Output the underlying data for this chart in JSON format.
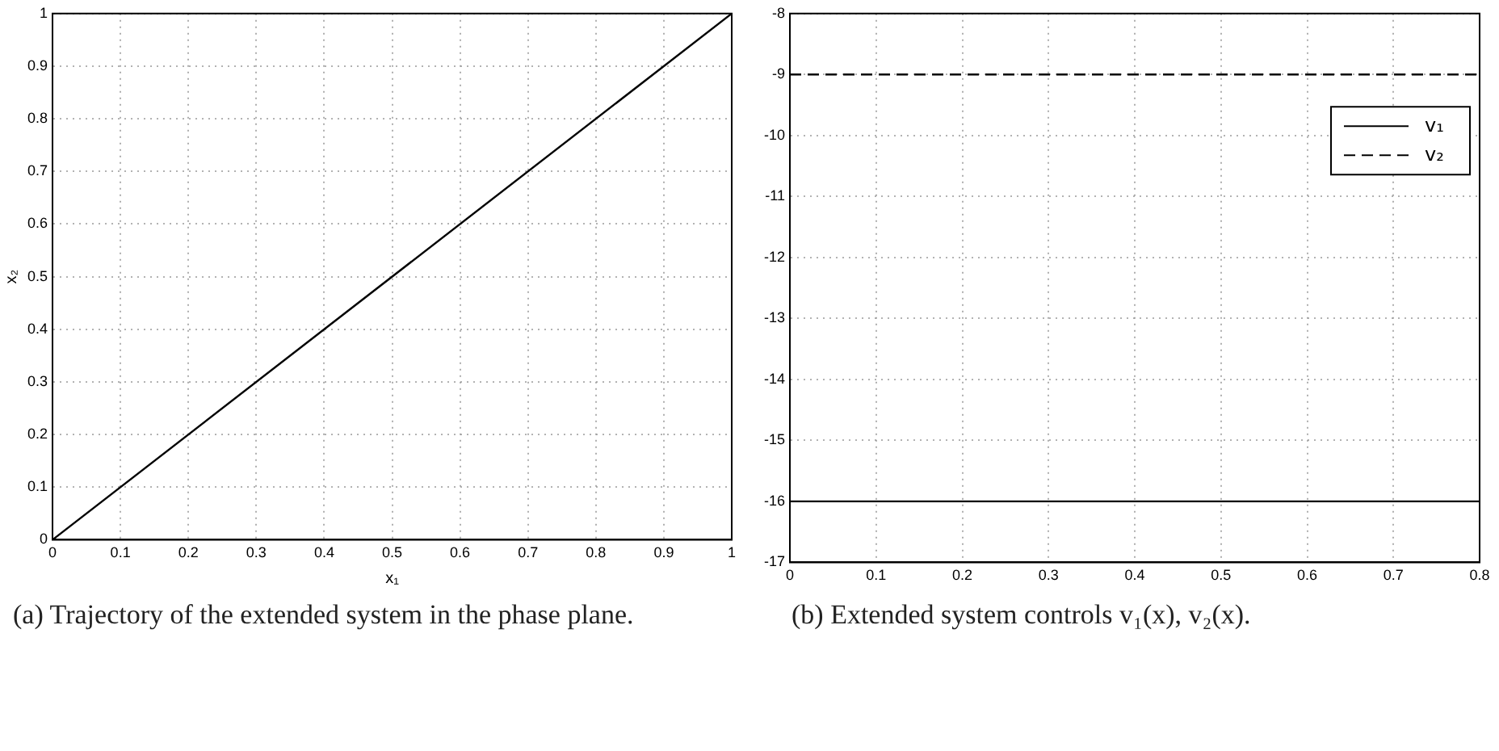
{
  "chart_data": [
    {
      "type": "line",
      "xlabel": "x₁",
      "ylabel": "x₂",
      "xlim": [
        0,
        1
      ],
      "ylim": [
        0,
        1
      ],
      "xticks": [
        0,
        0.1,
        0.2,
        0.3,
        0.4,
        0.5,
        0.6,
        0.7,
        0.8,
        0.9,
        1
      ],
      "yticks": [
        0,
        0.1,
        0.2,
        0.3,
        0.4,
        0.5,
        0.6,
        0.7,
        0.8,
        0.9,
        1
      ],
      "grid": true,
      "marker": "none",
      "line_style": "solid",
      "series": [
        {
          "color": "#000000",
          "x": [
            0,
            1
          ],
          "values": [
            0,
            1
          ]
        }
      ],
      "annotations": [
        "(a) Trajectory of the extended system in the phase plane."
      ]
    },
    {
      "type": "line",
      "xlim": [
        0,
        0.8
      ],
      "ylim": [
        -17,
        -8
      ],
      "xticks": [
        0,
        0.1,
        0.2,
        0.3,
        0.4,
        0.5,
        0.6,
        0.7,
        0.8
      ],
      "yticks": [
        -17,
        -16,
        -15,
        -14,
        -13,
        -12,
        -11,
        -10,
        -9,
        -8
      ],
      "grid": true,
      "marker": "none",
      "legend": "top right",
      "series": [
        {
          "name": "v₁",
          "color": "#000000",
          "line_style": "solid",
          "x": [
            0,
            0.8
          ],
          "values": [
            -16,
            -16
          ]
        },
        {
          "name": "v₂",
          "color": "#000000",
          "line_style": "dashed",
          "x": [
            0,
            0.8
          ],
          "values": [
            -9,
            -9
          ]
        }
      ],
      "annotations": [
        "(b) Extended system controls v₁(x), v₂(x)."
      ]
    }
  ]
}
